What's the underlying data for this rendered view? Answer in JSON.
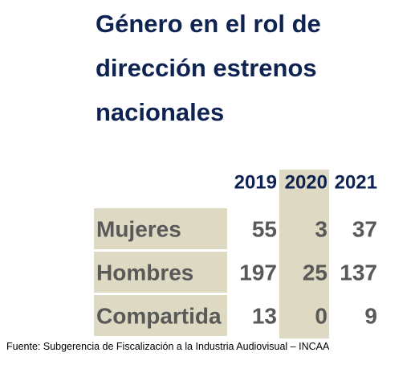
{
  "title": "Género en el rol de dirección estrenos nacionales",
  "source": "Fuente: Subgerencia de Fiscalización a la Industria Audiovisual – INCAA",
  "colors": {
    "title": "#0f2352",
    "header_text": "#0f2352",
    "body_text": "#595959",
    "shaded_cell": "#ddd9c3"
  },
  "chart_data": {
    "type": "table",
    "columns": [
      "2019",
      "2020",
      "2021"
    ],
    "rows": [
      {
        "label": "Mujeres",
        "values": [
          55,
          3,
          37
        ]
      },
      {
        "label": "Hombres",
        "values": [
          197,
          25,
          137
        ]
      },
      {
        "label": "Compartida",
        "values": [
          13,
          0,
          9
        ]
      }
    ],
    "highlighted_column": "2020",
    "highlighted_row_labels": true
  }
}
